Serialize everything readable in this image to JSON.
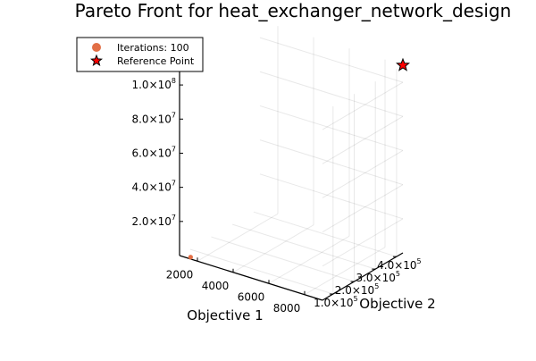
{
  "chart_data": {
    "type": "scatter",
    "title": "Pareto Front for heat_exchanger_network_design",
    "xlabel": "Objective 1",
    "ylabel": "Objective 2",
    "zlabel": "",
    "x_ticks": [
      {
        "label": "2000"
      },
      {
        "label": "4000"
      },
      {
        "label": "6000"
      },
      {
        "label": "8000"
      }
    ],
    "y_ticks": [
      {
        "mant": "1.0×10",
        "exp": "5"
      },
      {
        "mant": "2.0×10",
        "exp": "5"
      },
      {
        "mant": "3.0×10",
        "exp": "5"
      },
      {
        "mant": "4.0×10",
        "exp": "5"
      }
    ],
    "z_ticks": [
      {
        "mant": "2.0×10",
        "exp": "7"
      },
      {
        "mant": "4.0×10",
        "exp": "7"
      },
      {
        "mant": "6.0×10",
        "exp": "7"
      },
      {
        "mant": "8.0×10",
        "exp": "7"
      },
      {
        "mant": "1.0×10",
        "exp": "8"
      }
    ],
    "xlim": [
      1000,
      9000
    ],
    "ylim": [
      50000,
      430000
    ],
    "zlim": [
      0,
      110000000
    ],
    "grid": true,
    "legend_position": "top-left",
    "series": [
      {
        "name": "Iterations: 100",
        "marker": "circle",
        "color": "#e26f46",
        "points": [
          {
            "x": 1500,
            "y": 60000,
            "z": 0
          }
        ]
      },
      {
        "name": "Reference Point",
        "marker": "star",
        "color": "#ff0000",
        "points": [
          {
            "x": 9000,
            "y": 430000,
            "z": 110000000
          }
        ]
      }
    ]
  }
}
